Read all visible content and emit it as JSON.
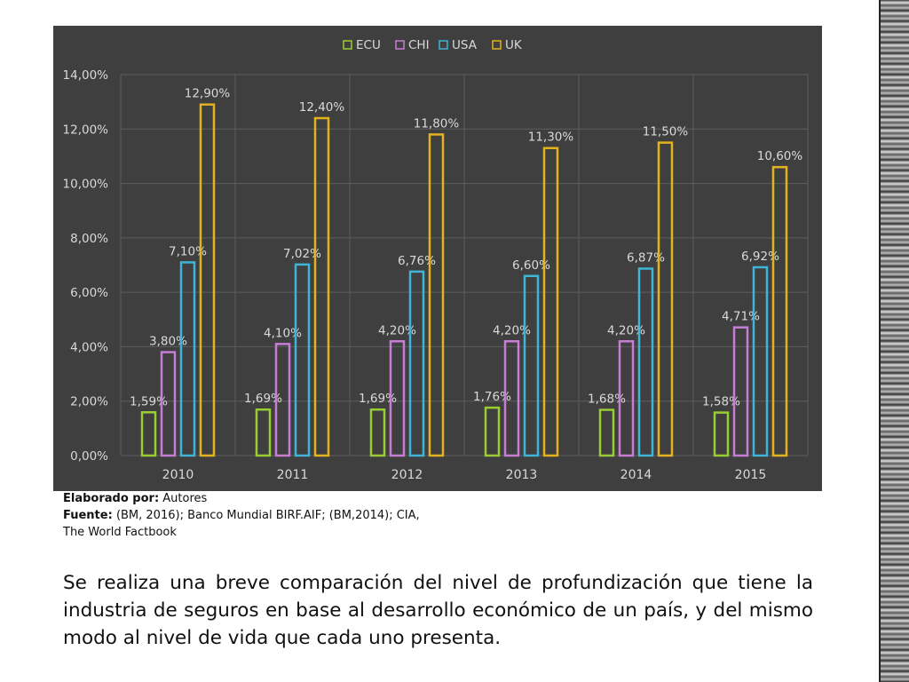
{
  "chart_data": {
    "type": "bar",
    "categories": [
      "2010",
      "2011",
      "2012",
      "2013",
      "2014",
      "2015"
    ],
    "series": [
      {
        "name": "ECU",
        "color": "#9ACD32",
        "values": [
          1.59,
          1.69,
          1.69,
          1.76,
          1.68,
          1.58
        ],
        "labels": [
          "1,59%",
          "1,69%",
          "1,69%",
          "1,76%",
          "1,68%",
          "1,58%"
        ]
      },
      {
        "name": "CHI",
        "color": "#C77DD6",
        "values": [
          3.8,
          4.1,
          4.2,
          4.2,
          4.2,
          4.71
        ],
        "labels": [
          "3,80%",
          "4,10%",
          "4,20%",
          "4,20%",
          "4,20%",
          "4,71%"
        ]
      },
      {
        "name": "USA",
        "color": "#3FB4D6",
        "values": [
          7.1,
          7.02,
          6.76,
          6.6,
          6.87,
          6.92
        ],
        "labels": [
          "7,10%",
          "7,02%",
          "6,76%",
          "6,60%",
          "6,87%",
          "6,92%"
        ]
      },
      {
        "name": "UK",
        "color": "#E3B21F",
        "values": [
          12.9,
          12.4,
          11.8,
          11.3,
          11.5,
          10.6
        ],
        "labels": [
          "12,90%",
          "12,40%",
          "11,80%",
          "11,30%",
          "11,50%",
          "10,60%"
        ]
      }
    ],
    "ylim": [
      0,
      14
    ],
    "yticks": [
      0,
      2,
      4,
      6,
      8,
      10,
      12,
      14
    ],
    "ytick_labels": [
      "0,00%",
      "2,00%",
      "4,00%",
      "6,00%",
      "8,00%",
      "10,00%",
      "12,00%",
      "14,00%"
    ],
    "title": "",
    "xlabel": "",
    "ylabel": "",
    "grid": true,
    "legend_position": "top"
  },
  "caption": {
    "author_label": "Elaborado por:",
    "author_value": "Autores",
    "source_label": "Fuente:",
    "source_value": "(BM, 2016); Banco Mundial BIRF.AIF; (BM,2014); CIA,",
    "source_value_line2": "The World Factbook"
  },
  "body_text": "Se realiza una breve comparación del nivel de profundización que tiene la industria de seguros en base al desarrollo económico de un país, y del mismo modo al nivel de vida que cada uno presenta."
}
